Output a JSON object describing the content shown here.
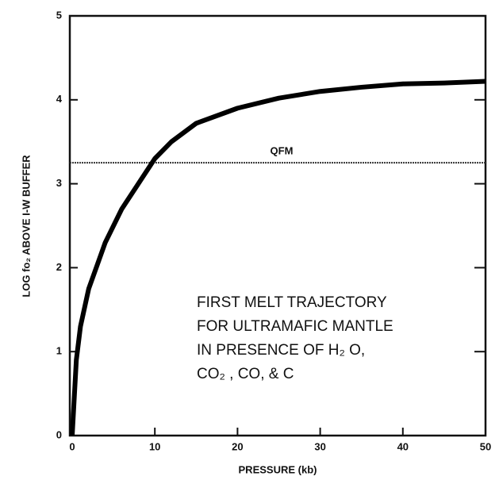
{
  "chart_data": {
    "type": "line",
    "xlabel": "PRESSURE (kb)",
    "ylabel": "LOG fo₂ ABOVE I-W BUFFER",
    "x": [
      0,
      0.5,
      1,
      2,
      4,
      6,
      8,
      10,
      12,
      15,
      20,
      25,
      30,
      35,
      40,
      45,
      50
    ],
    "series": [
      {
        "color": "#000000",
        "values": [
          0,
          0.9,
          1.3,
          1.75,
          2.3,
          2.7,
          3.0,
          3.3,
          3.5,
          3.72,
          3.9,
          4.02,
          4.1,
          4.15,
          4.19,
          4.2,
          4.22
        ]
      }
    ],
    "reference_line": {
      "value": 3.25,
      "label": "QFM",
      "color": "#333333"
    },
    "annotation": [
      "FIRST MELT TRAJECTORY",
      "FOR ULTRAMAFIC MANTLE",
      "IN PRESENCE OF H₂ O,",
      "CO₂ , CO, & C"
    ],
    "xlim": [
      0,
      50
    ],
    "xticks": [
      0,
      10,
      20,
      30,
      40,
      50
    ],
    "ylim": [
      0,
      5
    ],
    "yticks": [
      0,
      1,
      2,
      3,
      4,
      5
    ],
    "grid": false
  }
}
